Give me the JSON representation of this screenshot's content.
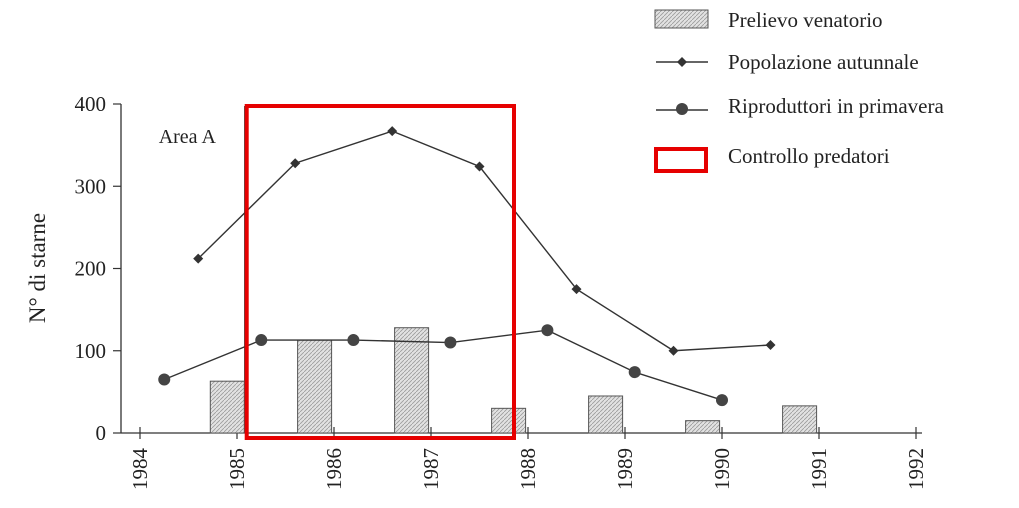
{
  "chart_data": {
    "type": "bar",
    "ylabel": "N° di starne",
    "ylim": [
      0,
      400
    ],
    "yticks": [
      0,
      100,
      200,
      300,
      400
    ],
    "xlim": [
      1984,
      1992
    ],
    "xticks": [
      "1984",
      "1985",
      "1986",
      "1987",
      "1988",
      "1989",
      "1990",
      "1991",
      "1992"
    ],
    "annotation": {
      "text": "Area A",
      "x": 1985.1
    },
    "highlight": {
      "label": "Controllo predatori",
      "x_from": 1985.1,
      "x_to": 1988.0,
      "color": "#e60000"
    },
    "series": [
      {
        "name": "Prelievo venatorio",
        "kind": "bar",
        "x": [
          1984.9,
          1985.8,
          1986.8,
          1987.8,
          1988.8,
          1989.8,
          1990.8
        ],
        "values": [
          63,
          113,
          128,
          30,
          45,
          15,
          33
        ]
      },
      {
        "name": "Popolazione autunnale",
        "kind": "line",
        "marker": "diamond",
        "x": [
          1984.6,
          1985.6,
          1986.6,
          1987.5,
          1988.5,
          1989.5,
          1990.5
        ],
        "values": [
          212,
          328,
          367,
          324,
          175,
          100,
          107
        ]
      },
      {
        "name": "Riproduttori in primavera",
        "kind": "line",
        "marker": "circle",
        "x": [
          1984.25,
          1985.25,
          1986.2,
          1987.2,
          1988.2,
          1989.1,
          1990.0
        ],
        "values": [
          65,
          113,
          113,
          110,
          125,
          74,
          40
        ]
      }
    ],
    "legend_position": "top-right",
    "grid": false
  }
}
